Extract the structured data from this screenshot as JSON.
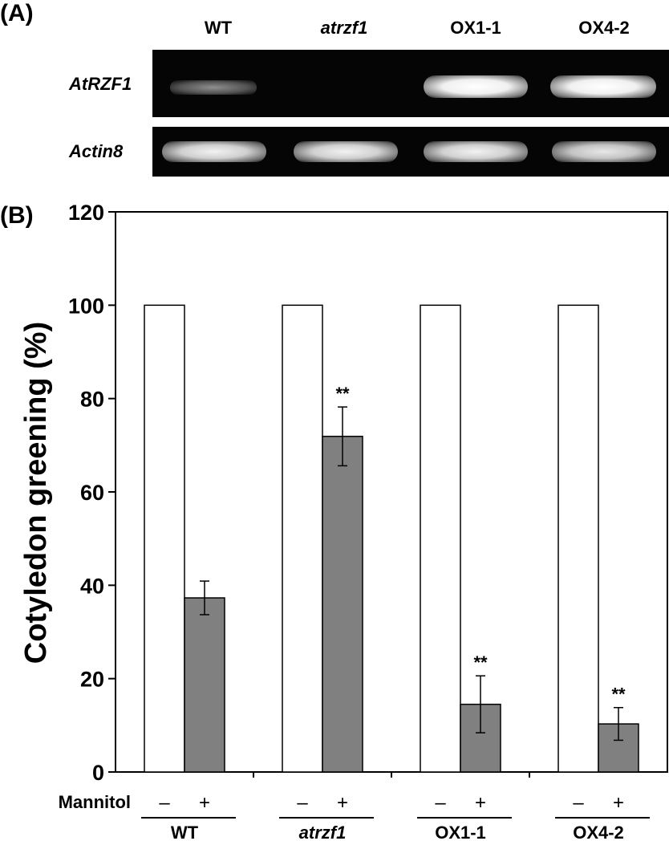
{
  "panel_a": {
    "label": "(A)",
    "lanes": [
      "WT",
      "atrzf1",
      "OX1-1",
      "OX4-2"
    ],
    "genes": [
      "AtRZF1",
      "Actin8"
    ]
  },
  "panel_b": {
    "label": "(B)",
    "treatment_label": "Mannitol",
    "minus_symbol": "–",
    "plus_symbol": "+"
  },
  "chart_data": {
    "type": "bar",
    "categories": [
      "WT",
      "atrzf1",
      "OX1-1",
      "OX4-2"
    ],
    "italic_categories": [
      "atrzf1"
    ],
    "series": [
      {
        "name": "–",
        "values": [
          100,
          100,
          100,
          100
        ],
        "errors": [
          0,
          0,
          0,
          0
        ],
        "color": "#ffffff"
      },
      {
        "name": "+",
        "values": [
          37.3,
          71.9,
          14.5,
          10.3
        ],
        "errors": [
          3.6,
          6.3,
          6.1,
          3.5
        ],
        "color": "#808080"
      }
    ],
    "significance": [
      "",
      "**",
      "**",
      "**"
    ],
    "ylabel": "Cotyledon greening (%)",
    "xlabel": "",
    "ylim": [
      0,
      120
    ],
    "yticks": [
      0,
      20,
      40,
      60,
      80,
      100,
      120
    ],
    "grid": false
  }
}
